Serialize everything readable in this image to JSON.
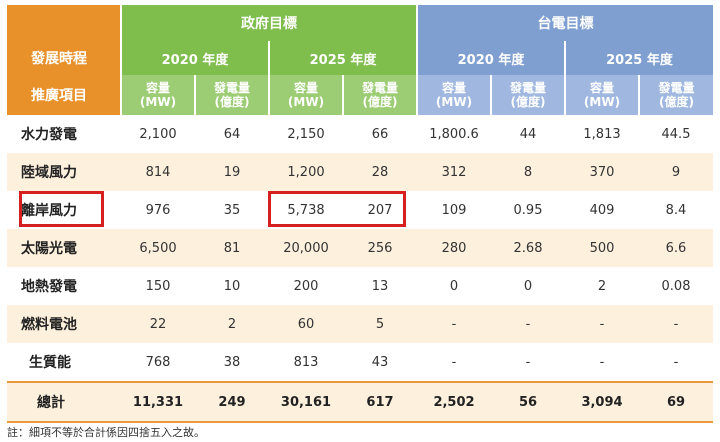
{
  "header": {
    "row_label_top": "發展時程",
    "row_label_bottom": "推廣項目",
    "gov_title": "政府目標",
    "taipower_title": "台電目標",
    "year_2020": "2020 年度",
    "year_2025": "2025 年度",
    "capacity_label": "容量\n(MW)",
    "generation_label": "發電量\n(億度)"
  },
  "rows": [
    {
      "name": "水力發電",
      "values": [
        "2,100",
        "64",
        "2,150",
        "66",
        "1,800.6",
        "44",
        "1,813",
        "44.5"
      ]
    },
    {
      "name": "陸域風力",
      "values": [
        "814",
        "19",
        "1,200",
        "28",
        "312",
        "8",
        "370",
        "9"
      ]
    },
    {
      "name": "離岸風力",
      "values": [
        "976",
        "35",
        "5,738",
        "207",
        "109",
        "0.95",
        "409",
        "8.4"
      ]
    },
    {
      "name": "太陽光電",
      "values": [
        "6,500",
        "81",
        "20,000",
        "256",
        "280",
        "2.68",
        "500",
        "6.6"
      ]
    },
    {
      "name": "地熱發電",
      "values": [
        "150",
        "10",
        "200",
        "13",
        "0",
        "0",
        "2",
        "0.08"
      ]
    },
    {
      "name": "燃料電池",
      "values": [
        "22",
        "2",
        "60",
        "5",
        "-",
        "-",
        "-",
        "-"
      ]
    },
    {
      "name": "生質能",
      "values": [
        "768",
        "38",
        "813",
        "43",
        "-",
        "-",
        "-",
        "-"
      ]
    }
  ],
  "total": {
    "name": "總計",
    "values": [
      "11,331",
      "249",
      "30,161",
      "617",
      "2,502",
      "56",
      "3,094",
      "69"
    ]
  },
  "note": "註：細項不等於合計係因四捨五入之故。",
  "highlight_color": "#d62020"
}
